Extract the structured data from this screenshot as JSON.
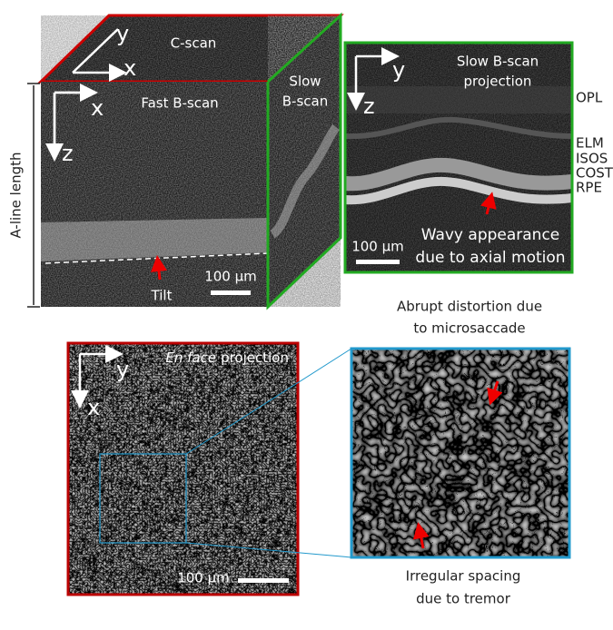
{
  "volume": {
    "cscan_axes": {
      "y": "y",
      "x": "x"
    },
    "cscan_label": "C-scan",
    "fast_axes": {
      "x": "x",
      "z": "z"
    },
    "fast_label": "Fast B-scan",
    "slow_label": [
      "Slow",
      "B-scan"
    ],
    "aline_label": "A-line length",
    "scale_bar": "100 µm",
    "tilt_label": "Tilt"
  },
  "slow_projection": {
    "axes": {
      "y": "y",
      "z": "z"
    },
    "title": [
      "Slow B-scan",
      "projection"
    ],
    "layers": [
      "OPL",
      "ELM",
      "ISOS",
      "COST",
      "RPE"
    ],
    "annotation": [
      "Wavy appearance",
      "due to axial motion"
    ],
    "scale_bar": "100 µm"
  },
  "en_face": {
    "axes": {
      "y": "y",
      "x": "x"
    },
    "title_italic": "En face",
    "title_rest": "projection",
    "scale_bar": "100 µm"
  },
  "zoom": {
    "top_note": [
      "Abrupt distortion due",
      "to microsaccade"
    ],
    "bottom_note": [
      "Irregular spacing",
      "due to tremor"
    ]
  }
}
